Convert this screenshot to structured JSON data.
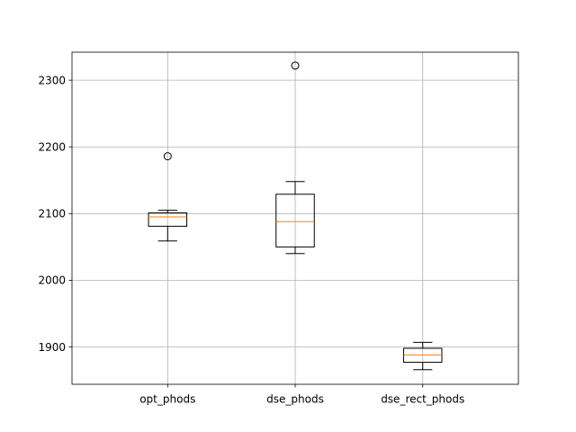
{
  "chart_data": {
    "type": "boxplot",
    "title": "",
    "xlabel": "",
    "ylabel": "",
    "grid": true,
    "ylim": [
      1844,
      2342
    ],
    "y_ticks": [
      1900,
      2000,
      2100,
      2200,
      2300
    ],
    "y_tick_labels": [
      "1900",
      "2000",
      "2100",
      "2200",
      "2300"
    ],
    "categories": [
      "opt_phods",
      "dse_phods",
      "dse_rect_phods"
    ],
    "boxes": [
      {
        "label": "opt_phods",
        "whisker_low": 2059,
        "q1": 2081,
        "median": 2095,
        "q3": 2101,
        "whisker_high": 2105,
        "fliers": [
          2186
        ]
      },
      {
        "label": "dse_phods",
        "whisker_low": 2040,
        "q1": 2050,
        "median": 2088,
        "q3": 2129,
        "whisker_high": 2148,
        "fliers": [
          2322
        ]
      },
      {
        "label": "dse_rect_phods",
        "whisker_low": 1866,
        "q1": 1877,
        "median": 1888,
        "q3": 1898,
        "whisker_high": 1907,
        "fliers": []
      }
    ],
    "colors": {
      "box": "#000000",
      "median": "#ff7f0e",
      "grid": "#b0b0b0",
      "background": "#ffffff"
    }
  }
}
